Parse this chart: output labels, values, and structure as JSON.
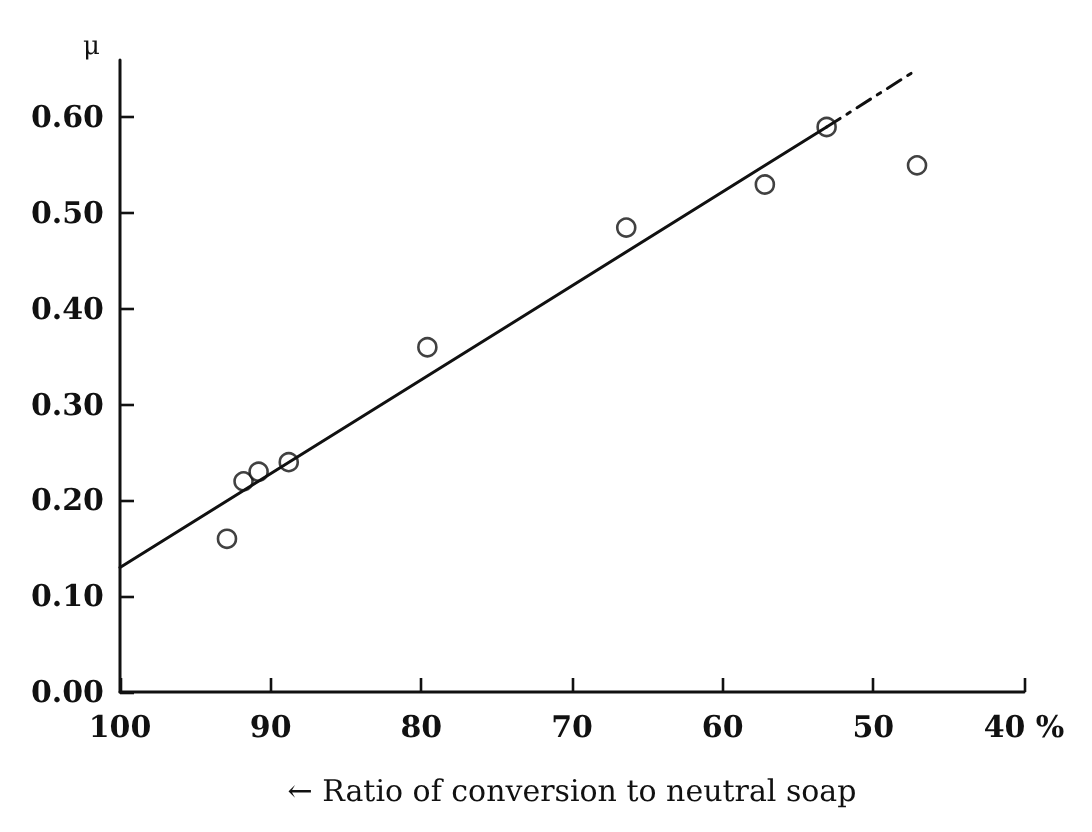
{
  "chart_data": {
    "type": "scatter",
    "xlabel": "← Ratio of conversion to neutral soap",
    "ylabel": "μ",
    "xlim": [
      100,
      40
    ],
    "ylim": [
      0,
      0.66
    ],
    "xticks": [
      100,
      90,
      80,
      70,
      60,
      50,
      {
        "value": 40,
        "label": "40 %"
      }
    ],
    "yticks": [
      {
        "value": 0,
        "label": "0.00"
      },
      {
        "value": 0.1,
        "label": "0.10"
      },
      {
        "value": 0.2,
        "label": "0.20"
      },
      {
        "value": 0.3,
        "label": "0.30"
      },
      {
        "value": 0.4,
        "label": "0.40"
      },
      {
        "value": 0.5,
        "label": "0.50"
      },
      {
        "value": 0.6,
        "label": "0.60"
      }
    ],
    "grid": false,
    "marker": "circle",
    "series": [
      {
        "color": "#111111",
        "x": [
          92.9,
          91.8,
          90.8,
          88.8,
          79.6,
          66.4,
          57.2,
          53.1,
          47.1
        ],
        "values": [
          0.16,
          0.22,
          0.23,
          0.24,
          0.36,
          0.485,
          0.53,
          0.59,
          0.55
        ]
      },
      {
        "type": "line",
        "color": "#111111",
        "line_style": "solid",
        "marker": "none",
        "x": [
          100,
          53.1
        ],
        "values": [
          0.13,
          0.59
        ]
      },
      {
        "type": "line",
        "color": "#111111",
        "line_style": "dashed",
        "marker": "none",
        "x": [
          53.1,
          47.1
        ],
        "values": [
          0.59,
          0.65
        ]
      }
    ]
  }
}
